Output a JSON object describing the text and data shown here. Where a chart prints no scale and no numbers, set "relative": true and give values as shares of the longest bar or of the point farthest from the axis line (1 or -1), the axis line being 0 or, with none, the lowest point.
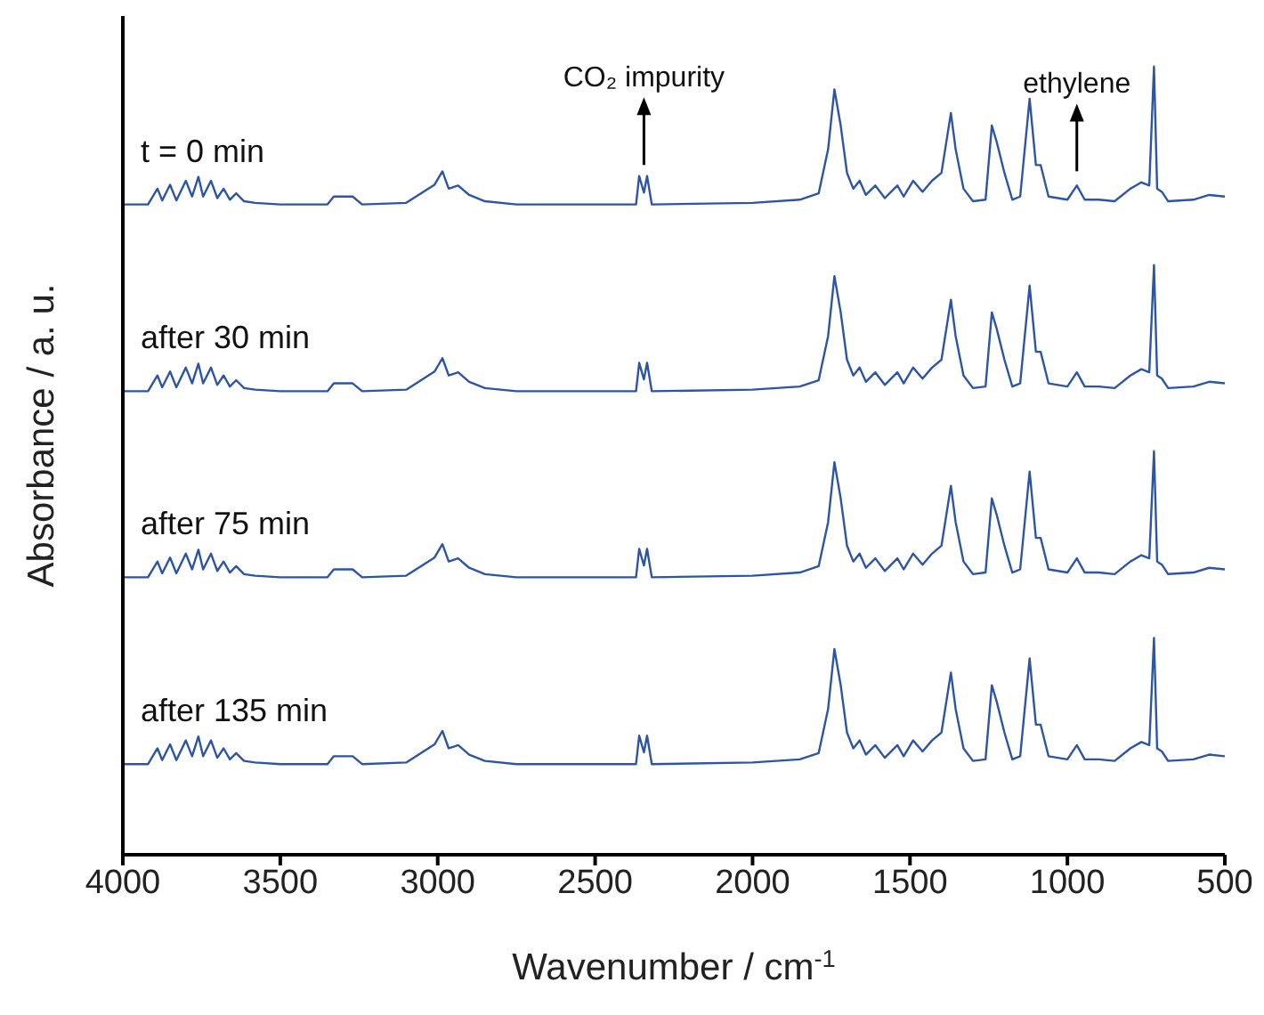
{
  "chart_data": {
    "type": "line",
    "relative": true,
    "xlabel": "Wavenumber / cm$^{-1}$",
    "ylabel": "Absorbance / a. u.",
    "xlim": [
      4000,
      500
    ],
    "xticks": [
      4000,
      3500,
      3000,
      2500,
      2000,
      1500,
      1000,
      500
    ],
    "marker": "none",
    "line_style": "solid",
    "annotations": [
      {
        "text": "CO₂ impurity",
        "x": 2345,
        "y": 0.866
      },
      {
        "text": "ethylene",
        "x": 970,
        "y": 0.858
      }
    ],
    "x": [
      4000,
      3920,
      3890,
      3875,
      3850,
      3830,
      3800,
      3780,
      3760,
      3745,
      3720,
      3700,
      3680,
      3660,
      3640,
      3615,
      3580,
      3500,
      3350,
      3330,
      3270,
      3240,
      3100,
      3010,
      2985,
      2965,
      2935,
      2900,
      2850,
      2750,
      2370,
      2360,
      2345,
      2335,
      2320,
      2000,
      1850,
      1790,
      1760,
      1740,
      1720,
      1700,
      1680,
      1660,
      1640,
      1610,
      1580,
      1540,
      1520,
      1490,
      1460,
      1430,
      1400,
      1370,
      1355,
      1330,
      1300,
      1260,
      1240,
      1225,
      1200,
      1175,
      1150,
      1120,
      1100,
      1085,
      1060,
      1000,
      970,
      945,
      900,
      850,
      800,
      765,
      740,
      725,
      715,
      700,
      680,
      600,
      550,
      500
    ],
    "series": [
      {
        "name": "t = 0 min",
        "color": "#2d55a5",
        "values": [
          0.825,
          0.825,
          0.845,
          0.83,
          0.85,
          0.83,
          0.855,
          0.835,
          0.86,
          0.835,
          0.855,
          0.833,
          0.845,
          0.831,
          0.839,
          0.829,
          0.827,
          0.825,
          0.825,
          0.835,
          0.835,
          0.825,
          0.827,
          0.85,
          0.867,
          0.845,
          0.849,
          0.837,
          0.829,
          0.825,
          0.825,
          0.861,
          0.84,
          0.861,
          0.825,
          0.827,
          0.831,
          0.839,
          0.895,
          0.971,
          0.925,
          0.865,
          0.845,
          0.855,
          0.837,
          0.849,
          0.833,
          0.849,
          0.835,
          0.855,
          0.841,
          0.855,
          0.865,
          0.941,
          0.895,
          0.845,
          0.829,
          0.831,
          0.925,
          0.905,
          0.865,
          0.831,
          0.835,
          0.959,
          0.875,
          0.875,
          0.835,
          0.831,
          0.849,
          0.831,
          0.831,
          0.829,
          0.845,
          0.853,
          0.849,
          1,
          0.845,
          0.841,
          0.829,
          0.831,
          0.837,
          0.835
        ]
      },
      {
        "name": "after 30 min",
        "color": "#2d55a5",
        "values": [
          0.588,
          0.588,
          0.608,
          0.593,
          0.613,
          0.593,
          0.618,
          0.598,
          0.623,
          0.598,
          0.618,
          0.596,
          0.608,
          0.594,
          0.602,
          0.592,
          0.59,
          0.588,
          0.588,
          0.598,
          0.598,
          0.588,
          0.59,
          0.613,
          0.63,
          0.608,
          0.612,
          0.6,
          0.592,
          0.588,
          0.588,
          0.624,
          0.603,
          0.624,
          0.588,
          0.59,
          0.594,
          0.602,
          0.658,
          0.734,
          0.688,
          0.628,
          0.608,
          0.618,
          0.6,
          0.612,
          0.596,
          0.612,
          0.598,
          0.618,
          0.604,
          0.618,
          0.628,
          0.704,
          0.658,
          0.608,
          0.592,
          0.594,
          0.688,
          0.668,
          0.628,
          0.594,
          0.598,
          0.722,
          0.638,
          0.638,
          0.598,
          0.594,
          0.612,
          0.594,
          0.594,
          0.592,
          0.608,
          0.616,
          0.612,
          0.748,
          0.608,
          0.604,
          0.592,
          0.594,
          0.6,
          0.598
        ]
      },
      {
        "name": "after 75 min",
        "color": "#2d55a5",
        "values": [
          0.352,
          0.352,
          0.372,
          0.357,
          0.377,
          0.357,
          0.382,
          0.362,
          0.387,
          0.362,
          0.382,
          0.36,
          0.372,
          0.358,
          0.366,
          0.356,
          0.354,
          0.352,
          0.352,
          0.362,
          0.362,
          0.352,
          0.354,
          0.377,
          0.394,
          0.372,
          0.376,
          0.364,
          0.356,
          0.352,
          0.352,
          0.388,
          0.367,
          0.388,
          0.352,
          0.354,
          0.358,
          0.366,
          0.422,
          0.498,
          0.452,
          0.392,
          0.372,
          0.382,
          0.364,
          0.376,
          0.36,
          0.376,
          0.362,
          0.382,
          0.368,
          0.382,
          0.392,
          0.468,
          0.422,
          0.372,
          0.356,
          0.358,
          0.452,
          0.432,
          0.392,
          0.358,
          0.362,
          0.486,
          0.402,
          0.402,
          0.362,
          0.358,
          0.376,
          0.358,
          0.358,
          0.356,
          0.372,
          0.38,
          0.376,
          0.512,
          0.372,
          0.368,
          0.356,
          0.358,
          0.364,
          0.362
        ]
      },
      {
        "name": "after 135 min",
        "color": "#2d55a5",
        "values": [
          0.115,
          0.115,
          0.135,
          0.12,
          0.14,
          0.12,
          0.145,
          0.125,
          0.15,
          0.125,
          0.145,
          0.123,
          0.135,
          0.121,
          0.129,
          0.119,
          0.117,
          0.115,
          0.115,
          0.125,
          0.125,
          0.115,
          0.117,
          0.14,
          0.157,
          0.135,
          0.139,
          0.127,
          0.119,
          0.115,
          0.115,
          0.151,
          0.13,
          0.151,
          0.115,
          0.117,
          0.121,
          0.129,
          0.185,
          0.261,
          0.215,
          0.155,
          0.135,
          0.145,
          0.127,
          0.139,
          0.123,
          0.139,
          0.125,
          0.145,
          0.131,
          0.145,
          0.155,
          0.231,
          0.185,
          0.135,
          0.119,
          0.121,
          0.215,
          0.195,
          0.155,
          0.121,
          0.125,
          0.249,
          0.165,
          0.165,
          0.125,
          0.121,
          0.139,
          0.121,
          0.121,
          0.119,
          0.135,
          0.143,
          0.139,
          0.275,
          0.135,
          0.131,
          0.119,
          0.121,
          0.127,
          0.125
        ]
      }
    ]
  }
}
